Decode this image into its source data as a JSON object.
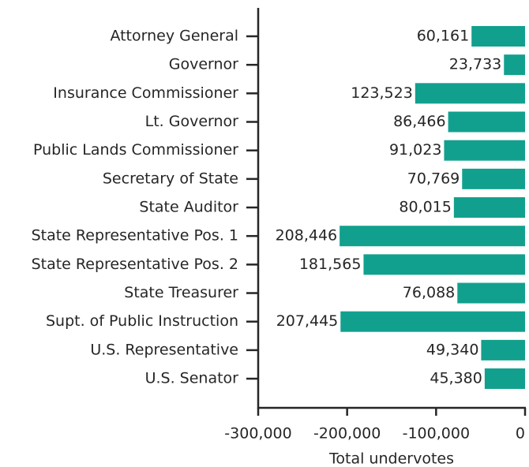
{
  "chart_data": {
    "type": "barh",
    "categories": [
      "Attorney General",
      "Governor",
      "Insurance Commissioner",
      "Lt. Governor",
      "Public Lands Commissioner",
      "Secretary of State",
      "State Auditor",
      "State Representative Pos. 1",
      "State Representative Pos. 2",
      "State Treasurer",
      "Supt. of Public Instruction",
      "U.S. Representative",
      "U.S. Senator"
    ],
    "values": [
      -60161,
      -23733,
      -123523,
      -86466,
      -91023,
      -70769,
      -80015,
      -208446,
      -181565,
      -76088,
      -207445,
      -49340,
      -45380
    ],
    "value_labels": [
      "60,161",
      "23,733",
      "123,523",
      "86,466",
      "91,023",
      "70,769",
      "80,015",
      "208,446",
      "181,565",
      "76,088",
      "207,445",
      "49,340",
      "45,380"
    ],
    "color": "#12a08e",
    "xlabel": "Total undervotes",
    "xlim": [
      -300000,
      0
    ],
    "xticks": [
      {
        "value": -300000,
        "label": "-300,000"
      },
      {
        "value": -200000,
        "label": "-200,000"
      },
      {
        "value": -100000,
        "label": "-100,000"
      },
      0
    ]
  }
}
